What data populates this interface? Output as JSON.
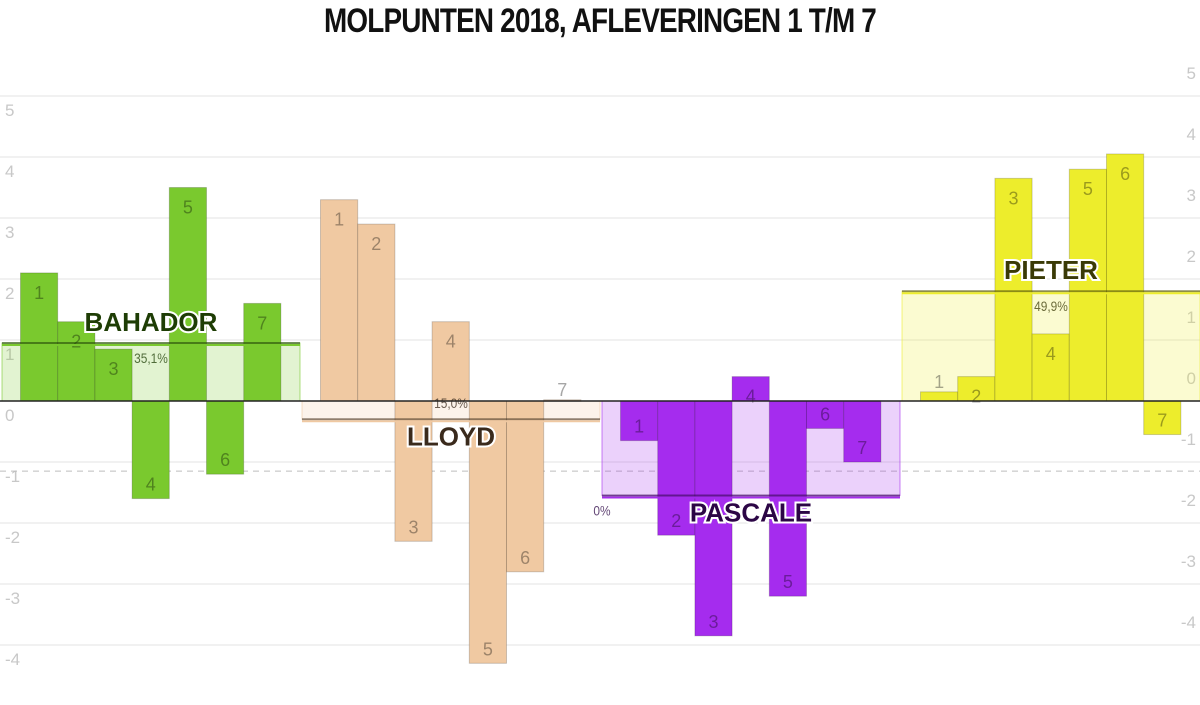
{
  "chart_data": {
    "type": "bar",
    "title": "MOLPUNTEN 2018, AFLEVERINGEN 1 T/M 7",
    "left_axis": {
      "ticks": [
        "5",
        "4",
        "3",
        "2",
        "1",
        "0",
        "-1",
        "-2",
        "-3",
        "-4"
      ],
      "ylim": [
        -4.3,
        5.2
      ]
    },
    "right_axis": {
      "ticks": [
        "5",
        "4",
        "3",
        "2",
        "1",
        "0",
        "-1",
        "-2",
        "-3",
        "-4"
      ]
    },
    "grid": true,
    "series": [
      {
        "name": "BAHADOR",
        "color": "#7ac92e",
        "label_color": "#1e3d05",
        "percent": "35,1%",
        "average": 0.95,
        "episodes": [
          "1",
          "2",
          "3",
          "4",
          "5",
          "6",
          "7"
        ],
        "values": [
          2.1,
          1.3,
          0.85,
          -1.6,
          3.5,
          -1.2,
          1.6
        ]
      },
      {
        "name": "LLOYD",
        "color": "#f0c9a2",
        "label_color": "#3a2a1c",
        "percent": "15,0%",
        "average": -0.3,
        "episodes": [
          "1",
          "2",
          "3",
          "4",
          "5",
          "6",
          "7"
        ],
        "values": [
          3.3,
          2.9,
          -2.3,
          1.3,
          -4.3,
          -2.8,
          0.02
        ]
      },
      {
        "name": "PASCALE",
        "color": "#a52cee",
        "label_color": "#2c0646",
        "percent": "0%",
        "average": -1.55,
        "episodes": [
          "1",
          "2",
          "3",
          "4",
          "5",
          "6",
          "7"
        ],
        "values": [
          -0.65,
          -2.2,
          -3.85,
          0.4,
          -3.2,
          -0.45,
          -1.0
        ]
      },
      {
        "name": "PIETER",
        "color": "#eded2c",
        "label_color": "#3a3a06",
        "percent": "49,9%",
        "average": 1.8,
        "episodes": [
          "1",
          "2",
          "3",
          "4",
          "5",
          "6",
          "7"
        ],
        "values": [
          0.15,
          0.4,
          3.65,
          1.1,
          3.8,
          4.05,
          -0.55
        ]
      }
    ]
  }
}
